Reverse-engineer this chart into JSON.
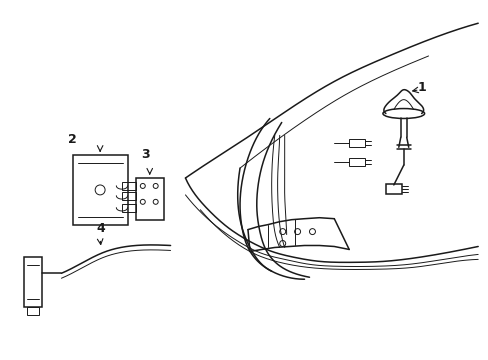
{
  "background_color": "#ffffff",
  "line_color": "#1a1a1a",
  "label_color": "#111111",
  "fig_width": 4.89,
  "fig_height": 3.6,
  "dpi": 100,
  "lw_main": 1.1,
  "lw_thin": 0.7,
  "label_fontsize": 9
}
